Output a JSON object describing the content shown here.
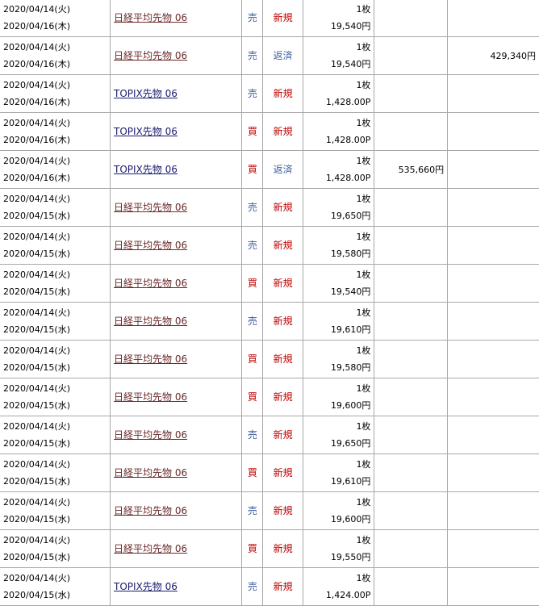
{
  "colors": {
    "sell": "#3c5fa0",
    "buy": "#c00000",
    "new": "#c00000",
    "close": "#3c5fa0",
    "nikkei_link": "#6b2a2a",
    "topix_link": "#1a1a6e"
  },
  "rows": [
    {
      "date1": "2020/04/14(火)",
      "date2": "2020/04/16(木)",
      "name": "日経平均先物 06",
      "kind": "nikkei",
      "side": "売",
      "type": "新規",
      "qty": "1枚",
      "price": "19,540円",
      "col6": "",
      "col7": ""
    },
    {
      "date1": "2020/04/14(火)",
      "date2": "2020/04/16(木)",
      "name": "日経平均先物 06",
      "kind": "nikkei",
      "side": "売",
      "type": "返済",
      "qty": "1枚",
      "price": "19,540円",
      "col6": "",
      "col7": "429,340円"
    },
    {
      "date1": "2020/04/14(火)",
      "date2": "2020/04/16(木)",
      "name": "TOPIX先物 06",
      "kind": "topix",
      "side": "売",
      "type": "新規",
      "qty": "1枚",
      "price": "1,428.00P",
      "col6": "",
      "col7": ""
    },
    {
      "date1": "2020/04/14(火)",
      "date2": "2020/04/16(木)",
      "name": "TOPIX先物 06",
      "kind": "topix",
      "side": "買",
      "type": "新規",
      "qty": "1枚",
      "price": "1,428.00P",
      "col6": "",
      "col7": ""
    },
    {
      "date1": "2020/04/14(火)",
      "date2": "2020/04/16(木)",
      "name": "TOPIX先物 06",
      "kind": "topix",
      "side": "買",
      "type": "返済",
      "qty": "1枚",
      "price": "1,428.00P",
      "col6": "535,660円",
      "col7": ""
    },
    {
      "date1": "2020/04/14(火)",
      "date2": "2020/04/15(水)",
      "name": "日経平均先物 06",
      "kind": "nikkei",
      "side": "売",
      "type": "新規",
      "qty": "1枚",
      "price": "19,650円",
      "col6": "",
      "col7": ""
    },
    {
      "date1": "2020/04/14(火)",
      "date2": "2020/04/15(水)",
      "name": "日経平均先物 06",
      "kind": "nikkei",
      "side": "売",
      "type": "新規",
      "qty": "1枚",
      "price": "19,580円",
      "col6": "",
      "col7": ""
    },
    {
      "date1": "2020/04/14(火)",
      "date2": "2020/04/15(水)",
      "name": "日経平均先物 06",
      "kind": "nikkei",
      "side": "買",
      "type": "新規",
      "qty": "1枚",
      "price": "19,540円",
      "col6": "",
      "col7": ""
    },
    {
      "date1": "2020/04/14(火)",
      "date2": "2020/04/15(水)",
      "name": "日経平均先物 06",
      "kind": "nikkei",
      "side": "売",
      "type": "新規",
      "qty": "1枚",
      "price": "19,610円",
      "col6": "",
      "col7": ""
    },
    {
      "date1": "2020/04/14(火)",
      "date2": "2020/04/15(水)",
      "name": "日経平均先物 06",
      "kind": "nikkei",
      "side": "買",
      "type": "新規",
      "qty": "1枚",
      "price": "19,580円",
      "col6": "",
      "col7": ""
    },
    {
      "date1": "2020/04/14(火)",
      "date2": "2020/04/15(水)",
      "name": "日経平均先物 06",
      "kind": "nikkei",
      "side": "買",
      "type": "新規",
      "qty": "1枚",
      "price": "19,600円",
      "col6": "",
      "col7": ""
    },
    {
      "date1": "2020/04/14(火)",
      "date2": "2020/04/15(水)",
      "name": "日経平均先物 06",
      "kind": "nikkei",
      "side": "売",
      "type": "新規",
      "qty": "1枚",
      "price": "19,650円",
      "col6": "",
      "col7": ""
    },
    {
      "date1": "2020/04/14(火)",
      "date2": "2020/04/15(水)",
      "name": "日経平均先物 06",
      "kind": "nikkei",
      "side": "買",
      "type": "新規",
      "qty": "1枚",
      "price": "19,610円",
      "col6": "",
      "col7": ""
    },
    {
      "date1": "2020/04/14(火)",
      "date2": "2020/04/15(水)",
      "name": "日経平均先物 06",
      "kind": "nikkei",
      "side": "売",
      "type": "新規",
      "qty": "1枚",
      "price": "19,600円",
      "col6": "",
      "col7": ""
    },
    {
      "date1": "2020/04/14(火)",
      "date2": "2020/04/15(水)",
      "name": "日経平均先物 06",
      "kind": "nikkei",
      "side": "買",
      "type": "新規",
      "qty": "1枚",
      "price": "19,550円",
      "col6": "",
      "col7": ""
    },
    {
      "date1": "2020/04/14(火)",
      "date2": "2020/04/15(水)",
      "name": "TOPIX先物 06",
      "kind": "topix",
      "side": "売",
      "type": "新規",
      "qty": "1枚",
      "price": "1,424.00P",
      "col6": "",
      "col7": ""
    }
  ]
}
